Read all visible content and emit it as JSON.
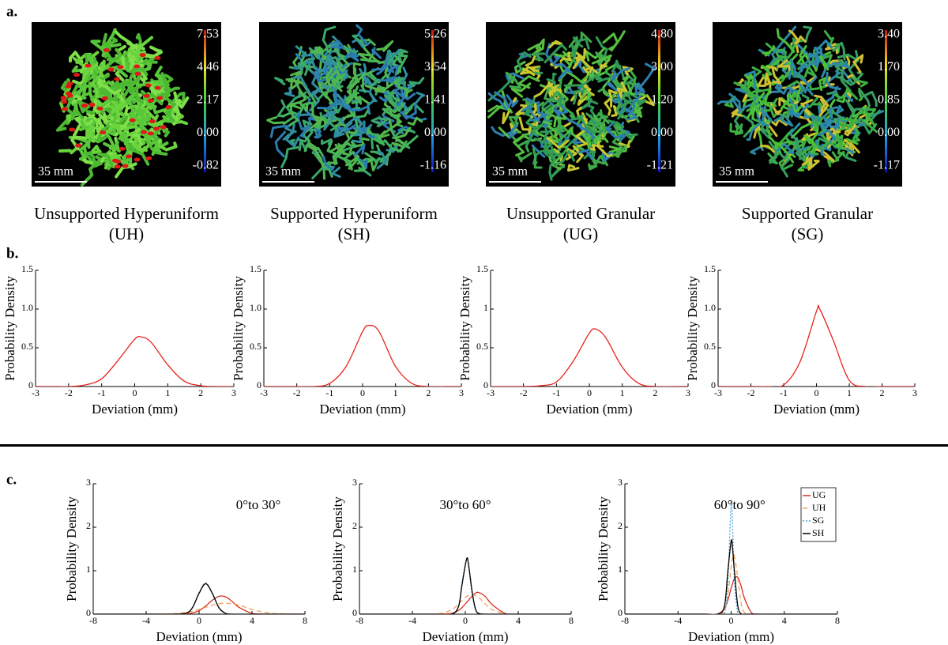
{
  "panel_labels": [
    "a.",
    "b.",
    "c."
  ],
  "renders": [
    {
      "name": "Unsupported Hyperuniform",
      "abbr": "(UH)",
      "scale_bar": "35 mm",
      "colorbar_ticks": [
        7.53,
        4.46,
        2.17,
        {
          "value": 0,
          "label": "0.00"
        },
        -0.82
      ]
    },
    {
      "name": "Supported Hyperuniform",
      "abbr": "(SH)",
      "scale_bar": "35 mm",
      "colorbar_ticks": [
        5.26,
        3.54,
        1.41,
        {
          "value": 0,
          "label": "0.00"
        },
        -1.16
      ]
    },
    {
      "name": "Unsupported Granular",
      "abbr": "(UG)",
      "scale_bar": "35 mm",
      "colorbar_ticks": [
        {
          "value": 4.8,
          "label": "4.80"
        },
        {
          "value": 3,
          "label": "3.00"
        },
        {
          "value": 1.2,
          "label": "1.20"
        },
        {
          "value": 0,
          "label": "0.00"
        },
        -1.21
      ]
    },
    {
      "name": "Supported Granular",
      "abbr": "(SG)",
      "scale_bar": "35 mm",
      "colorbar_ticks": [
        {
          "value": 3.4,
          "label": "3.40"
        },
        {
          "value": 1.7,
          "label": "1.70"
        },
        0.85,
        {
          "value": 0,
          "label": "0.00"
        },
        -1.17
      ]
    }
  ],
  "chart_data": [
    {
      "type": "line",
      "xlabel": "Deviation (mm)",
      "ylabel": "Probability Density",
      "x": [
        -3,
        -2.5,
        -2,
        -1.5,
        -1,
        -0.5,
        0,
        0.2,
        0.5,
        1,
        1.5,
        2,
        2.5,
        3
      ],
      "series": [
        {
          "color": "#e8231c",
          "linestyle": "solid",
          "values": [
            0,
            0,
            0,
            0.02,
            0.1,
            0.34,
            0.61,
            0.64,
            0.57,
            0.28,
            0.07,
            0.01,
            0,
            0
          ]
        }
      ],
      "xlim": [
        -3,
        3
      ],
      "ylim": [
        0,
        1.5
      ],
      "xticks": [
        -3,
        -2,
        -1,
        0,
        1,
        2,
        3
      ],
      "yticks": [
        0,
        0.5,
        {
          "value": 1,
          "label": "1.0"
        },
        1.5
      ]
    },
    {
      "type": "line",
      "xlabel": "Deviation (mm)",
      "ylabel": "Probability Density",
      "x": [
        -3,
        -2.5,
        -2,
        -1.5,
        -1,
        -0.5,
        0,
        0.2,
        0.5,
        1,
        1.5,
        2,
        2.5,
        3
      ],
      "series": [
        {
          "color": "#e8231c",
          "linestyle": "solid",
          "values": [
            0,
            0,
            0,
            0,
            0.04,
            0.26,
            0.71,
            0.79,
            0.71,
            0.26,
            0.04,
            0,
            0,
            0
          ]
        }
      ],
      "xlim": [
        -3,
        3
      ],
      "ylim": [
        0,
        1.5
      ],
      "xticks": [
        -3,
        -2,
        -1,
        0,
        1,
        2,
        3
      ],
      "yticks": [
        0,
        0.5,
        {
          "value": 1,
          "label": "1.0"
        },
        1.5
      ]
    },
    {
      "type": "line",
      "xlabel": "Deviation (mm)",
      "ylabel": "Probability Density",
      "x": [
        -3,
        -2.5,
        -2,
        -1.5,
        -1,
        -0.5,
        0,
        0.2,
        0.5,
        1,
        1.5,
        2,
        2.5,
        3
      ],
      "series": [
        {
          "color": "#e8231c",
          "linestyle": "solid",
          "values": [
            0,
            0,
            0,
            0.01,
            0.06,
            0.32,
            0.69,
            0.74,
            0.63,
            0.25,
            0.04,
            0,
            0,
            0
          ]
        }
      ],
      "xlim": [
        -3,
        3
      ],
      "ylim": [
        0,
        1.5
      ],
      "xticks": [
        -3,
        -2,
        -1,
        0,
        1,
        2,
        3
      ],
      "yticks": [
        0,
        0.5,
        1,
        1.5
      ]
    },
    {
      "type": "line",
      "xlabel": "Deviation (mm)",
      "ylabel": "Probability Density",
      "x": [
        -3,
        -2.5,
        -2,
        -1.5,
        -1,
        -0.5,
        0,
        0.1,
        0.5,
        1,
        1.5,
        2,
        2.5,
        3
      ],
      "series": [
        {
          "color": "#e8231c",
          "linestyle": "solid",
          "values": [
            0,
            0,
            0,
            0,
            0.02,
            0.32,
            0.97,
            1.0,
            0.61,
            0.08,
            0,
            0,
            0,
            0
          ]
        }
      ],
      "xlim": [
        -3,
        3
      ],
      "ylim": [
        0,
        1.5
      ],
      "xticks": [
        -3,
        -2,
        -1,
        0,
        1,
        2,
        3
      ],
      "yticks": [
        0,
        0.5,
        {
          "value": 1,
          "label": "1.0"
        },
        1.5
      ]
    },
    {
      "type": "line",
      "xlabel": "Deviation (mm)",
      "ylabel": "Probability Density",
      "annotation": "0°to 30°",
      "x": [
        -8,
        -4,
        -2,
        -1,
        -0.5,
        0,
        0.5,
        1,
        1.5,
        2,
        2.5,
        3,
        4,
        5,
        6,
        8
      ],
      "series": [
        {
          "color": "#d7301f",
          "linestyle": "solid",
          "values": [
            0,
            0,
            0,
            0.01,
            0.03,
            0.08,
            0.19,
            0.32,
            0.41,
            0.4,
            0.29,
            0.16,
            0.02,
            0,
            0,
            0
          ]
        },
        {
          "color": "#f4a259",
          "linestyle": "dashed",
          "values": [
            0,
            0,
            0.01,
            0.04,
            0.07,
            0.11,
            0.16,
            0.21,
            0.24,
            0.25,
            0.24,
            0.21,
            0.11,
            0.04,
            0.01,
            0
          ]
        },
        {
          "color": "#4f9fd6",
          "linestyle": "dotted",
          "values": [
            0,
            0,
            0,
            0.02,
            0.16,
            0.5,
            0.72,
            0.48,
            0.14,
            0.02,
            0,
            0,
            0,
            0,
            0,
            0
          ]
        },
        {
          "color": "#000000",
          "linestyle": "solid",
          "values": [
            0,
            0,
            0,
            0.02,
            0.15,
            0.48,
            0.7,
            0.48,
            0.15,
            0.02,
            0,
            0,
            0,
            0,
            0,
            0
          ]
        }
      ],
      "xlim": [
        -8,
        8
      ],
      "ylim": [
        0,
        3
      ],
      "xticks": [
        -8,
        -4,
        0,
        4,
        8
      ],
      "yticks": [
        0,
        1,
        2,
        3
      ]
    },
    {
      "type": "line",
      "xlabel": "Deviation (mm)",
      "ylabel": "Probability Density",
      "annotation": "30°to 60°",
      "x": [
        -8,
        -4,
        -2,
        -1,
        -0.5,
        -0.25,
        0.1,
        0.25,
        0.5,
        0.75,
        1,
        1.5,
        2,
        3,
        4,
        8
      ],
      "series": [
        {
          "color": "#d7301f",
          "linestyle": "solid",
          "values": [
            0,
            0,
            0,
            0.02,
            0.09,
            0.15,
            0.27,
            0.32,
            0.41,
            0.48,
            0.5,
            0.41,
            0.23,
            0.02,
            0,
            0
          ]
        },
        {
          "color": "#f4a259",
          "linestyle": "dashed",
          "values": [
            0,
            0,
            0.01,
            0.11,
            0.24,
            0.32,
            0.41,
            0.43,
            0.45,
            0.43,
            0.39,
            0.24,
            0.11,
            0.01,
            0,
            0
          ]
        },
        {
          "color": "#4f9fd6",
          "linestyle": "dotted",
          "values": [
            0,
            0,
            0,
            0,
            0.2,
            0.72,
            1.28,
            1.1,
            0.5,
            0.12,
            0.01,
            0,
            0,
            0,
            0,
            0
          ]
        },
        {
          "color": "#000000",
          "linestyle": "solid",
          "values": [
            0,
            0,
            0,
            0,
            0.19,
            0.67,
            1.27,
            1.13,
            0.55,
            0.14,
            0.02,
            0,
            0,
            0,
            0,
            0
          ]
        }
      ],
      "xlim": [
        -8,
        8
      ],
      "ylim": [
        0,
        3
      ],
      "xticks": [
        -8,
        -4,
        0,
        4,
        8
      ],
      "yticks": [
        0,
        1,
        2,
        3
      ]
    },
    {
      "type": "line",
      "xlabel": "Deviation (mm)",
      "ylabel": "Probability Density",
      "annotation": "60°to 90°",
      "legend": "upper right",
      "x": [
        -8,
        -4,
        -2,
        -1,
        -0.5,
        -0.25,
        0,
        0.1,
        0.25,
        0.5,
        0.75,
        1,
        1.5,
        2,
        4,
        8
      ],
      "series": [
        {
          "name": "UG",
          "color": "#d7301f",
          "linestyle": "solid",
          "values": [
            0,
            0,
            0,
            0.01,
            0.13,
            0.32,
            0.6,
            0.7,
            0.82,
            0.85,
            0.65,
            0.37,
            0.05,
            0,
            0,
            0
          ]
        },
        {
          "name": "UH",
          "color": "#f4a259",
          "linestyle": "dashed",
          "values": [
            0,
            0,
            0,
            0,
            0.09,
            0.44,
            1.08,
            1.28,
            1.34,
            0.82,
            0.25,
            0.04,
            0,
            0,
            0,
            0
          ]
        },
        {
          "name": "SG",
          "color": "#4f9fd6",
          "linestyle": "dotted",
          "values": [
            0,
            0,
            0,
            0,
            0.02,
            0.75,
            2.55,
            2.1,
            0.75,
            0.02,
            0,
            0,
            0,
            0,
            0,
            0
          ]
        },
        {
          "name": "SH",
          "color": "#000000",
          "linestyle": "solid",
          "values": [
            0,
            0,
            0,
            0,
            0.19,
            0.98,
            1.68,
            1.54,
            0.98,
            0.19,
            0.01,
            0,
            0,
            0,
            0,
            0
          ]
        }
      ],
      "xlim": [
        -8,
        8
      ],
      "ylim": [
        0,
        3
      ],
      "xticks": [
        -8,
        -4,
        0,
        4,
        8
      ],
      "yticks": [
        0,
        1,
        2,
        3
      ]
    }
  ]
}
